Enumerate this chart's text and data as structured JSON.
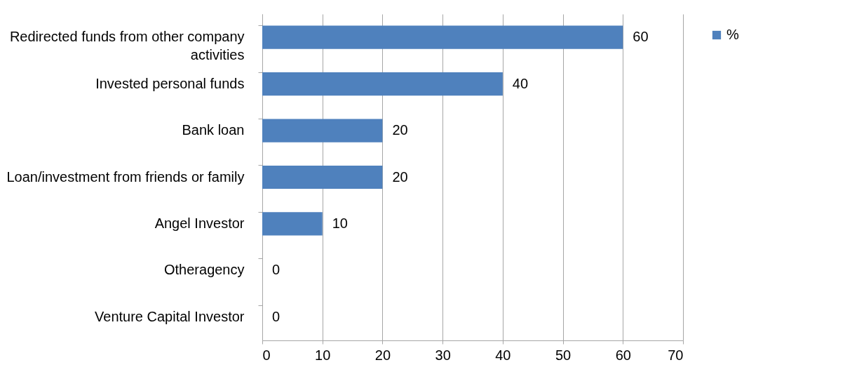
{
  "chart_data": {
    "type": "bar",
    "orientation": "horizontal",
    "categories": [
      "Redirected funds from other company activities",
      "Invested personal funds",
      "Bank loan",
      "Loan/investment from friends or family",
      "Angel Investor",
      "Otheragency",
      "Venture Capital Investor"
    ],
    "series": [
      {
        "name": "%",
        "color": "#4f81bd",
        "values": [
          60,
          40,
          20,
          20,
          10,
          0,
          0
        ]
      }
    ],
    "xlim": [
      0,
      70
    ],
    "xticks": [
      0,
      10,
      20,
      30,
      40,
      50,
      60,
      70
    ],
    "grid": "x",
    "legend": "right",
    "data_labels": true
  }
}
